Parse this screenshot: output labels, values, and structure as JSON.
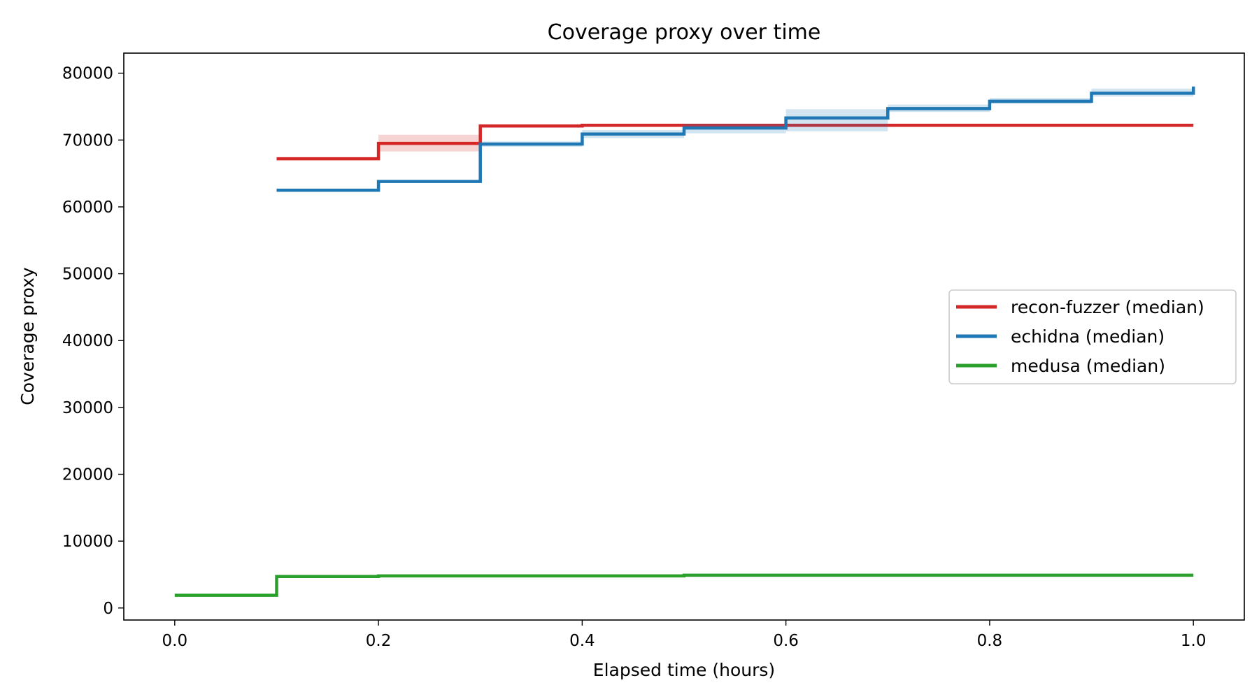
{
  "chart_data": {
    "type": "line",
    "step": "post",
    "title": "Coverage proxy over time",
    "xlabel": "Elapsed time (hours)",
    "ylabel": "Coverage proxy",
    "xlim": [
      -0.05,
      1.05
    ],
    "ylim": [
      -1800,
      83000
    ],
    "xticks": [
      0.0,
      0.2,
      0.4,
      0.6,
      0.8,
      1.0
    ],
    "xtick_labels": [
      "0.0",
      "0.2",
      "0.4",
      "0.6",
      "0.8",
      "1.0"
    ],
    "yticks": [
      0,
      10000,
      20000,
      30000,
      40000,
      50000,
      60000,
      70000,
      80000
    ],
    "ytick_labels": [
      "0",
      "10000",
      "20000",
      "30000",
      "40000",
      "50000",
      "60000",
      "70000",
      "80000"
    ],
    "grid": false,
    "legend_position": "center-right",
    "series": [
      {
        "name": "recon-fuzzer (median)",
        "color": "#d62728",
        "x": [
          0.1,
          0.2,
          0.3,
          0.4,
          0.5,
          0.6,
          0.7,
          0.8,
          0.9,
          1.0
        ],
        "y": [
          67200,
          69500,
          72100,
          72200,
          72200,
          72200,
          72200,
          72200,
          72200,
          72200
        ],
        "band_low": [
          67000,
          68300,
          71900,
          72000,
          72000,
          72000,
          72000,
          72000,
          72000,
          72000
        ],
        "band_high": [
          67400,
          70800,
          72300,
          72400,
          72400,
          72400,
          72400,
          72400,
          72400,
          72400
        ]
      },
      {
        "name": "echidna (median)",
        "color": "#1f77b4",
        "x": [
          0.1,
          0.2,
          0.3,
          0.4,
          0.5,
          0.6,
          0.7,
          0.8,
          0.9,
          1.0
        ],
        "y": [
          62500,
          63800,
          69400,
          70900,
          71800,
          73300,
          74700,
          75800,
          77000,
          78000
        ],
        "band_low": [
          62300,
          63600,
          69000,
          70300,
          71000,
          71300,
          74200,
          75400,
          76500,
          77300
        ],
        "band_high": [
          62700,
          64000,
          69800,
          71500,
          72400,
          74600,
          75300,
          76300,
          77700,
          79300
        ]
      },
      {
        "name": "medusa (median)",
        "color": "#2ca02c",
        "x": [
          0.0,
          0.1,
          0.2,
          0.3,
          0.4,
          0.5,
          0.6,
          0.7,
          0.8,
          0.9,
          1.0
        ],
        "y": [
          1900,
          4700,
          4800,
          4800,
          4800,
          4900,
          4900,
          4900,
          4900,
          4900,
          4900
        ],
        "band_low": [
          1800,
          4600,
          4700,
          4700,
          4700,
          4800,
          4800,
          4800,
          4800,
          4800,
          4800
        ],
        "band_high": [
          2000,
          4800,
          4900,
          4900,
          4900,
          5000,
          5000,
          5000,
          5000,
          5000,
          5000
        ]
      }
    ]
  }
}
